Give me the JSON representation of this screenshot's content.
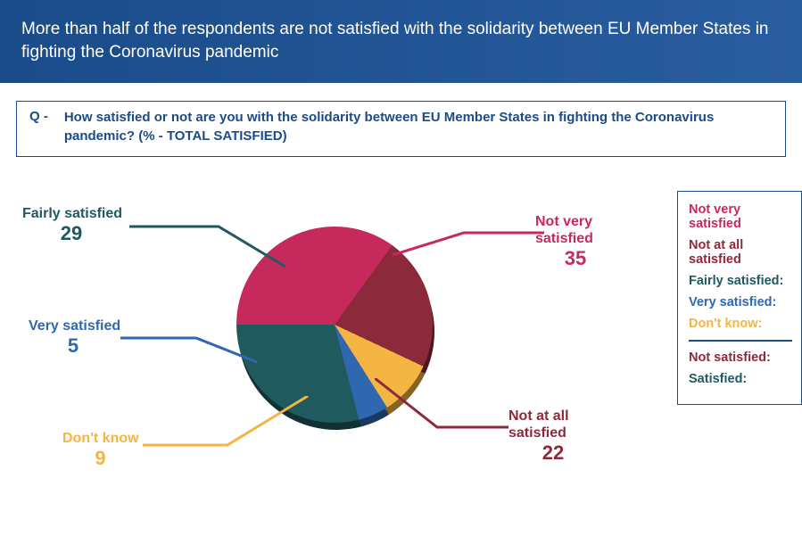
{
  "banner": {
    "text": "More than half of the respondents are not satisfied with the solidarity between EU Member States in fighting the Coronavirus pandemic"
  },
  "question": {
    "prefix": "Q  -",
    "text": "How satisfied or not are you with the solidarity between EU Member States in fighting the Coronavirus pandemic?  (% - TOTAL SATISFIED)"
  },
  "pie": {
    "type": "pie",
    "start_angle_deg": -90,
    "background_color": "#ffffff",
    "slices": [
      {
        "label": "Not very satisfied",
        "value": 35,
        "color": "#c6295b",
        "label_color": "#c6295b"
      },
      {
        "label": "Not at all satisfied",
        "value": 22,
        "color": "#8c2a3b",
        "label_color": "#8c2a3b"
      },
      {
        "label": "Don't know",
        "value": 9,
        "color": "#f4b542",
        "label_color": "#f4b542"
      },
      {
        "label": "Very satisfied",
        "value": 5,
        "color": "#2f67b1",
        "label_color": "#2f67b1"
      },
      {
        "label": "Fairly satisfied",
        "value": 29,
        "color": "#1e5a5e",
        "label_color": "#1e5a5e"
      }
    ],
    "callout_fontsize_label": 16,
    "callout_fontsize_value": 22,
    "leader_stroke_width": 3
  },
  "legend": {
    "border_color": "#1a4c8a",
    "rows_top": [
      {
        "text": "Not very satisfied",
        "color": "#c6295b"
      },
      {
        "text": "Not at all satisfied",
        "color": "#8c2a3b"
      },
      {
        "text": "Fairly satisfied:",
        "color": "#1e5a5e"
      },
      {
        "text": "Very satisfied:",
        "color": "#2f67b1"
      },
      {
        "text": "Don't know:",
        "color": "#f4b542"
      }
    ],
    "rows_bottom": [
      {
        "text": "Not satisfied:",
        "color": "#8c2a3b"
      },
      {
        "text": "Satisfied:",
        "color": "#1e5a5e"
      }
    ]
  }
}
